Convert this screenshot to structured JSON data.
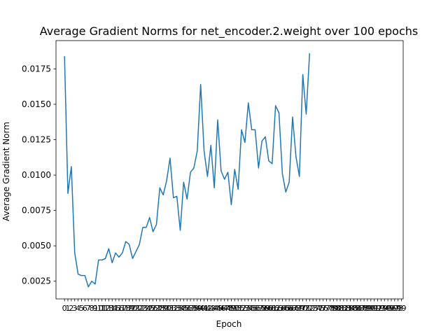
{
  "chart_data": {
    "type": "line",
    "title": "Average Gradient Norms for net_encoder.2.weight over 100 epochs",
    "xlabel": "Epoch",
    "ylabel": "Average Gradient Norm",
    "grid": false,
    "legend": "none",
    "xlim": [
      -2.5,
      99.5
    ],
    "ylim": [
      0.00125,
      0.0195
    ],
    "x_ticks": [
      "0",
      "1",
      "2",
      "3",
      "4",
      "5",
      "6",
      "7",
      "8",
      "9",
      "10",
      "11",
      "12",
      "13",
      "14",
      "15",
      "16",
      "17",
      "18",
      "19",
      "20",
      "21",
      "22",
      "23",
      "24",
      "25",
      "26",
      "27",
      "28",
      "29",
      "30",
      "31",
      "32",
      "33",
      "34",
      "35",
      "36",
      "37",
      "38",
      "39",
      "40",
      "41",
      "42",
      "43",
      "44",
      "45",
      "46",
      "47",
      "48",
      "49",
      "50",
      "51",
      "52",
      "53",
      "54",
      "55",
      "56",
      "57",
      "58",
      "59",
      "60",
      "61",
      "62",
      "63",
      "64",
      "65",
      "66",
      "67",
      "68",
      "69",
      "70",
      "71",
      "72",
      "73",
      "74",
      "75",
      "76",
      "77",
      "78",
      "79",
      "80",
      "81",
      "82",
      "83",
      "84",
      "85",
      "86",
      "87",
      "88",
      "89",
      "90",
      "91",
      "92",
      "93",
      "94",
      "95",
      "96",
      "97",
      "98",
      "99"
    ],
    "y_ticks": [
      "0.0025",
      "0.0050",
      "0.0075",
      "0.0100",
      "0.0125",
      "0.0150",
      "0.0175"
    ],
    "series": [
      {
        "color": "#1f77b4",
        "x": [
          0,
          1,
          2,
          3,
          4,
          5,
          6,
          7,
          8,
          9,
          10,
          11,
          12,
          13,
          14,
          15,
          16,
          17,
          18,
          19,
          20,
          21,
          22,
          23,
          24,
          25,
          26,
          27,
          28,
          29,
          30,
          31,
          32,
          33,
          34,
          35,
          36,
          37,
          38,
          39,
          40,
          41,
          42,
          43,
          44,
          45,
          46,
          47,
          48,
          49,
          50,
          51,
          52,
          53,
          54,
          55,
          56,
          57,
          58,
          59,
          60,
          61,
          62,
          63,
          64,
          65,
          66,
          67,
          68,
          69,
          70,
          71,
          72,
          73,
          74,
          75
        ],
        "y": [
          0.0184,
          0.0087,
          0.0106,
          0.0045,
          0.003,
          0.0029,
          0.0029,
          0.0021,
          0.0025,
          0.0023,
          0.004,
          0.004,
          0.0041,
          0.0048,
          0.0038,
          0.0045,
          0.0042,
          0.0045,
          0.0053,
          0.0051,
          0.0041,
          0.0046,
          0.0051,
          0.0063,
          0.0063,
          0.007,
          0.006,
          0.0065,
          0.0091,
          0.0086,
          0.0096,
          0.0112,
          0.0084,
          0.0085,
          0.0061,
          0.0095,
          0.0083,
          0.0102,
          0.0105,
          0.0117,
          0.0164,
          0.0117,
          0.0099,
          0.0121,
          0.0091,
          0.0139,
          0.0103,
          0.0097,
          0.0102,
          0.0079,
          0.0104,
          0.009,
          0.0132,
          0.0123,
          0.0151,
          0.0132,
          0.0132,
          0.0105,
          0.0124,
          0.0127,
          0.011,
          0.0108,
          0.0149,
          0.0144,
          0.0101,
          0.0088,
          0.0095,
          0.0141,
          0.0113,
          0.0099,
          0.0171,
          0.0143,
          0.0186,
          null,
          null,
          null
        ]
      }
    ]
  }
}
